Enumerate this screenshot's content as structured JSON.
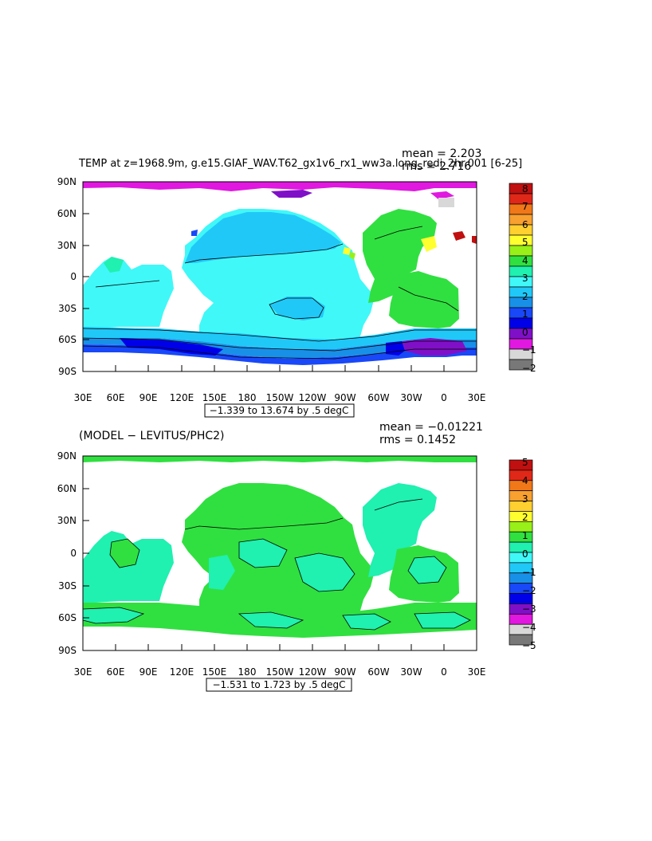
{
  "chart_data": [
    {
      "type": "heatmap",
      "title": "TEMP at z=1968.9m, g.e15.GIAF_WAV.T62_gx1v6_rx1_ww3a.long_redi_2hr.001 [6-25]",
      "stats": [
        "mean = 2.203",
        "rms = 2.716"
      ],
      "range_label": "−1.339 to 13.674 by .5 degC",
      "xticks": [
        "30E",
        "60E",
        "90E",
        "120E",
        "150E",
        "180",
        "150W",
        "120W",
        "90W",
        "60W",
        "30W",
        "0",
        "30E"
      ],
      "yticks": [
        "90N",
        "60N",
        "30N",
        "0",
        "30S",
        "60S",
        "90S"
      ],
      "colorbar": {
        "labels": [
          "8",
          "7",
          "6",
          "5",
          "4",
          "3",
          "2",
          "1",
          "0",
          "−1",
          "−2"
        ],
        "colors": [
          "#c01010",
          "#e02818",
          "#f07818",
          "#f8a030",
          "#ffd030",
          "#ffff30",
          "#98f018",
          "#30e040",
          "#20f0b0",
          "#40f8f8",
          "#20c8f8",
          "#1890e8",
          "#1848f8",
          "#0000e8",
          "#8010c8",
          "#e018e0",
          "#d8d8d8",
          "#787878"
        ]
      }
    },
    {
      "type": "heatmap",
      "title": "(MODEL − LEVITUS/PHC2)",
      "stats": [
        "mean = −0.01221",
        "rms = 0.1452"
      ],
      "range_label": "−1.531 to 1.723 by .5 degC",
      "xticks": [
        "30E",
        "60E",
        "90E",
        "120E",
        "150E",
        "180",
        "150W",
        "120W",
        "90W",
        "60W",
        "30W",
        "0",
        "30E"
      ],
      "yticks": [
        "90N",
        "60N",
        "30N",
        "0",
        "30S",
        "60S",
        "90S"
      ],
      "colorbar": {
        "labels": [
          "5",
          "4",
          "3",
          "2",
          "1",
          "0",
          "−1",
          "−2",
          "−3",
          "−4",
          "−5"
        ],
        "colors": [
          "#c01010",
          "#e02818",
          "#f07818",
          "#f8a030",
          "#ffd030",
          "#ffff30",
          "#98f018",
          "#30e040",
          "#20f0b0",
          "#40f8f8",
          "#20c8f8",
          "#1890e8",
          "#1848f8",
          "#0000e8",
          "#8010c8",
          "#e018e0",
          "#d8d8d8",
          "#787878"
        ]
      }
    }
  ]
}
